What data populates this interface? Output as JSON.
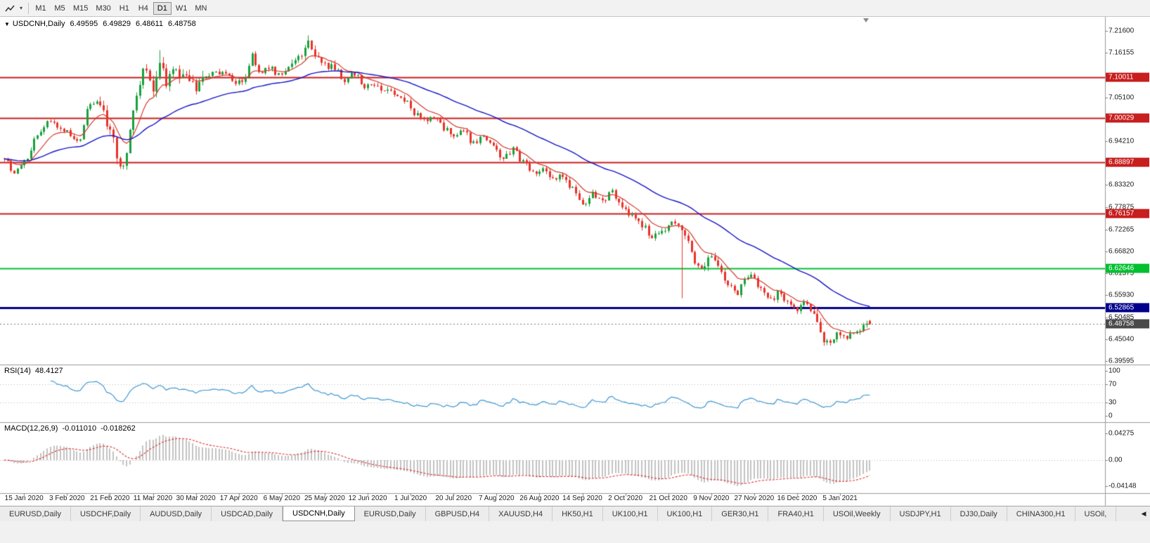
{
  "toolbar": {
    "timeframes": [
      "M1",
      "M5",
      "M15",
      "M30",
      "H1",
      "H4",
      "D1",
      "W1",
      "MN"
    ],
    "active_timeframe": "D1",
    "dropdown_caret": "▾"
  },
  "chart": {
    "symbol_period": "USDCNH,Daily",
    "dropdown_arrow": "▼",
    "ohlc": {
      "open": "6.49595",
      "high": "6.49829",
      "low": "6.48611",
      "close": "6.48758"
    },
    "price_axis": {
      "max": 7.216,
      "min": 6.39595,
      "plain_labels": [
        "7.21600",
        "7.16155",
        "7.05100",
        "6.94210",
        "6.83320",
        "6.77875",
        "6.72265",
        "6.66820",
        "6.61375",
        "6.55930",
        "6.50485",
        "6.45040",
        "6.39595"
      ]
    },
    "hlines": [
      {
        "label": "7.10011",
        "value": 7.10011,
        "color": "#c81e1e",
        "width": 2
      },
      {
        "label": "7.00029",
        "value": 7.00029,
        "color": "#c81e1e",
        "width": 2
      },
      {
        "label": "6.88897",
        "value": 6.88897,
        "color": "#c81e1e",
        "width": 2
      },
      {
        "label": "6.76157",
        "value": 6.76157,
        "color": "#c81e1e",
        "width": 2
      },
      {
        "label": "6.62646",
        "value": 6.62646,
        "color": "#00c030",
        "width": 2
      },
      {
        "label": "6.52865",
        "value": 6.52865,
        "color": "#00008b",
        "width": 3
      }
    ],
    "current_price": {
      "label": "6.48758",
      "value": 6.48758,
      "flag_color": "#4a4a4a"
    },
    "dates": [
      "15 Jan 2020",
      "3 Feb 2020",
      "21 Feb 2020",
      "11 Mar 2020",
      "30 Mar 2020",
      "17 Apr 2020",
      "6 May 2020",
      "25 May 2020",
      "12 Jun 2020",
      "1 Jul 2020",
      "20 Jul 2020",
      "7 Aug 2020",
      "26 Aug 2020",
      "14 Sep 2020",
      "2 Oct 2020",
      "21 Oct 2020",
      "9 Nov 2020",
      "27 Nov 2020",
      "16 Dec 2020",
      "5 Jan 2021"
    ]
  },
  "rsi_panel": {
    "name": "RSI(14)",
    "value": "48.4127",
    "axis_labels": [
      "100",
      "70",
      "30",
      "0"
    ],
    "levels": [
      70,
      30
    ],
    "line_color": "#3e97d1"
  },
  "macd_panel": {
    "name": "MACD(12,26,9)",
    "value": "-0.011010",
    "signal_value": "-0.018262",
    "axis_labels": [
      "0.04275",
      "0.00",
      "-0.04148"
    ],
    "histogram_color": "#c2c2c2",
    "signal_color": "#e03030"
  },
  "tabs": {
    "items": [
      "EURUSD,Daily",
      "USDCHF,Daily",
      "AUDUSD,Daily",
      "USDCAD,Daily",
      "USDCNH,Daily",
      "EURUSD,Daily",
      "GBPUSD,H4",
      "XAUUSD,H4",
      "HK50,H1",
      "UK100,H1",
      "UK100,H1",
      "GER30,H1",
      "FRA40,H1",
      "USOil,Weekly",
      "USDJPY,H1",
      "DJ30,Daily",
      "CHINA300,H1",
      "USOil,"
    ],
    "active_index": 4,
    "scroll_arrow": "◀"
  },
  "chart_data": {
    "type": "candlestick",
    "symbol": "USDCNH",
    "timeframe": "Daily",
    "y_range": [
      6.39595,
      7.216
    ],
    "candle_count": 263,
    "first_label_index": 6,
    "label_step": 13,
    "up_color": "#18a03c",
    "down_color": "#e8322a",
    "ma_fast": {
      "period": 10,
      "color": "#d33a2c"
    },
    "ma_slow": {
      "period": 45,
      "color": "#1515c8"
    },
    "last_candle": {
      "o": 6.49595,
      "h": 6.49829,
      "l": 6.48611,
      "c": 6.48758
    },
    "close_anchors": [
      [
        0,
        6.9
      ],
      [
        3,
        6.863
      ],
      [
        6,
        6.895
      ],
      [
        10,
        6.955
      ],
      [
        14,
        6.995
      ],
      [
        18,
        6.968
      ],
      [
        22,
        6.94
      ],
      [
        26,
        7.03
      ],
      [
        29,
        7.045
      ],
      [
        32,
        6.97
      ],
      [
        35,
        6.875
      ],
      [
        37,
        6.9
      ],
      [
        39,
        7.02
      ],
      [
        41,
        7.09
      ],
      [
        43,
        7.13
      ],
      [
        45,
        7.06
      ],
      [
        47,
        7.145
      ],
      [
        49,
        7.09
      ],
      [
        52,
        7.115
      ],
      [
        55,
        7.095
      ],
      [
        58,
        7.07
      ],
      [
        61,
        7.1
      ],
      [
        64,
        7.115
      ],
      [
        67,
        7.105
      ],
      [
        70,
        7.085
      ],
      [
        73,
        7.1
      ],
      [
        75,
        7.16
      ],
      [
        77,
        7.115
      ],
      [
        80,
        7.125
      ],
      [
        83,
        7.105
      ],
      [
        86,
        7.125
      ],
      [
        89,
        7.15
      ],
      [
        92,
        7.19
      ],
      [
        94,
        7.155
      ],
      [
        97,
        7.135
      ],
      [
        100,
        7.12
      ],
      [
        103,
        7.095
      ],
      [
        106,
        7.11
      ],
      [
        109,
        7.075
      ],
      [
        112,
        7.085
      ],
      [
        115,
        7.07
      ],
      [
        118,
        7.06
      ],
      [
        121,
        7.045
      ],
      [
        124,
        7.01
      ],
      [
        127,
        6.995
      ],
      [
        130,
        7.005
      ],
      [
        133,
        6.975
      ],
      [
        136,
        6.955
      ],
      [
        139,
        6.965
      ],
      [
        142,
        6.935
      ],
      [
        145,
        6.955
      ],
      [
        148,
        6.925
      ],
      [
        151,
        6.9
      ],
      [
        154,
        6.92
      ],
      [
        157,
        6.89
      ],
      [
        160,
        6.865
      ],
      [
        163,
        6.875
      ],
      [
        166,
        6.845
      ],
      [
        169,
        6.855
      ],
      [
        172,
        6.825
      ],
      [
        175,
        6.785
      ],
      [
        178,
        6.81
      ],
      [
        181,
        6.79
      ],
      [
        184,
        6.815
      ],
      [
        187,
        6.775
      ],
      [
        190,
        6.755
      ],
      [
        193,
        6.735
      ],
      [
        196,
        6.705
      ],
      [
        199,
        6.72
      ],
      [
        202,
        6.745
      ],
      [
        205,
        6.73
      ],
      [
        207,
        6.7
      ],
      [
        209,
        6.64
      ],
      [
        211,
        6.62
      ],
      [
        214,
        6.66
      ],
      [
        216,
        6.63
      ],
      [
        218,
        6.6
      ],
      [
        220,
        6.58
      ],
      [
        222,
        6.565
      ],
      [
        224,
        6.595
      ],
      [
        226,
        6.61
      ],
      [
        228,
        6.585
      ],
      [
        230,
        6.56
      ],
      [
        232,
        6.545
      ],
      [
        234,
        6.565
      ],
      [
        236,
        6.55
      ],
      [
        238,
        6.535
      ],
      [
        240,
        6.525
      ],
      [
        242,
        6.54
      ],
      [
        244,
        6.525
      ],
      [
        246,
        6.49
      ],
      [
        248,
        6.445
      ],
      [
        250,
        6.435
      ],
      [
        252,
        6.465
      ],
      [
        254,
        6.45
      ],
      [
        256,
        6.458
      ],
      [
        258,
        6.47
      ],
      [
        260,
        6.48
      ],
      [
        262,
        6.488
      ]
    ],
    "special_wicks": [
      {
        "i": 205,
        "low": 6.552
      },
      {
        "i": 92,
        "high": 7.205
      },
      {
        "i": 47,
        "high": 7.168
      }
    ],
    "volatility_zones": [
      [
        28,
        60,
        2.0
      ],
      [
        85,
        100,
        1.4
      ],
      [
        205,
        216,
        1.5
      ],
      [
        244,
        256,
        1.3
      ]
    ]
  }
}
